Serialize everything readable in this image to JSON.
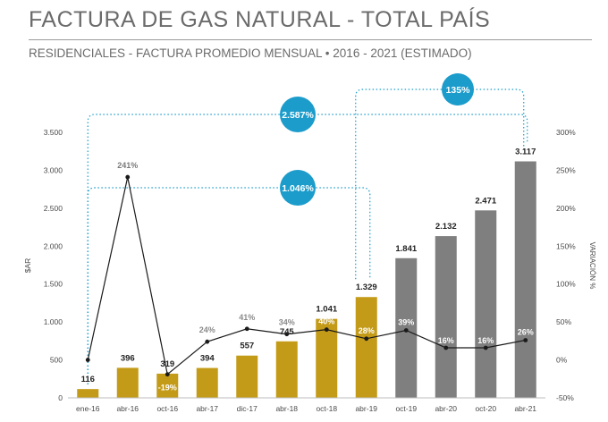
{
  "header": {
    "title": "FACTURA DE GAS NATURAL - TOTAL PAÍS",
    "subtitle": "RESIDENCIALES - FACTURA PROMEDIO MENSUAL • 2016 - 2021 (ESTIMADO)"
  },
  "colors": {
    "gold": "#C49B18",
    "gray": "#7F7F7F",
    "callout": "#1B9CCB",
    "line": "#1a1a1a",
    "axis_text": "#4a4a4a",
    "pct_positive_muted": "#8a8a8a"
  },
  "chart_data": {
    "type": "bar",
    "categories": [
      "ene-16",
      "abr-16",
      "oct-16",
      "abr-17",
      "dic-17",
      "abr-18",
      "oct-18",
      "abr-19",
      "oct-19",
      "abr-20",
      "oct-20",
      "abr-21"
    ],
    "bar_values": [
      116,
      396,
      319,
      394,
      557,
      745,
      1041,
      1329,
      1841,
      2132,
      2471,
      3117
    ],
    "bar_labels": [
      "116",
      "396",
      "319",
      "394",
      "557",
      "745",
      "1.041",
      "1.329",
      "1.841",
      "2.132",
      "2.471",
      "3.117"
    ],
    "bar_colors": [
      "gold",
      "gold",
      "gold",
      "gold",
      "gold",
      "gold",
      "gold",
      "gold",
      "gray",
      "gray",
      "gray",
      "gray"
    ],
    "variation_values": [
      0,
      241,
      -19,
      24,
      41,
      34,
      40,
      28,
      39,
      16,
      16,
      26
    ],
    "variation_labels": [
      "",
      "241%",
      "-19%",
      "24%",
      "41%",
      "34%",
      "40%",
      "28%",
      "39%",
      "16%",
      "16%",
      "26%"
    ],
    "ylabel": "$AR",
    "y2label": "VARIACIÓN %",
    "ylim": [
      0,
      3500
    ],
    "y2lim": [
      -50,
      300
    ],
    "yticks": [
      0,
      500,
      1000,
      1500,
      2000,
      2500,
      3000,
      3500
    ],
    "ytick_labels": [
      "0",
      "500",
      "1.000",
      "1.500",
      "2.000",
      "2.500",
      "3.000",
      "3.500"
    ],
    "y2ticks": [
      -50,
      0,
      50,
      100,
      150,
      200,
      250,
      300
    ],
    "y2tick_labels": [
      "-50%",
      "0%",
      "50%",
      "100%",
      "150%",
      "200%",
      "250%",
      "300%"
    ],
    "grid": false,
    "callouts": [
      {
        "label": "2.587%",
        "from": "ene-16",
        "to": "abr-21"
      },
      {
        "label": "1.046%",
        "from": "ene-16",
        "to": "abr-19"
      },
      {
        "label": "135%",
        "from": "abr-19",
        "to": "abr-21"
      }
    ]
  }
}
